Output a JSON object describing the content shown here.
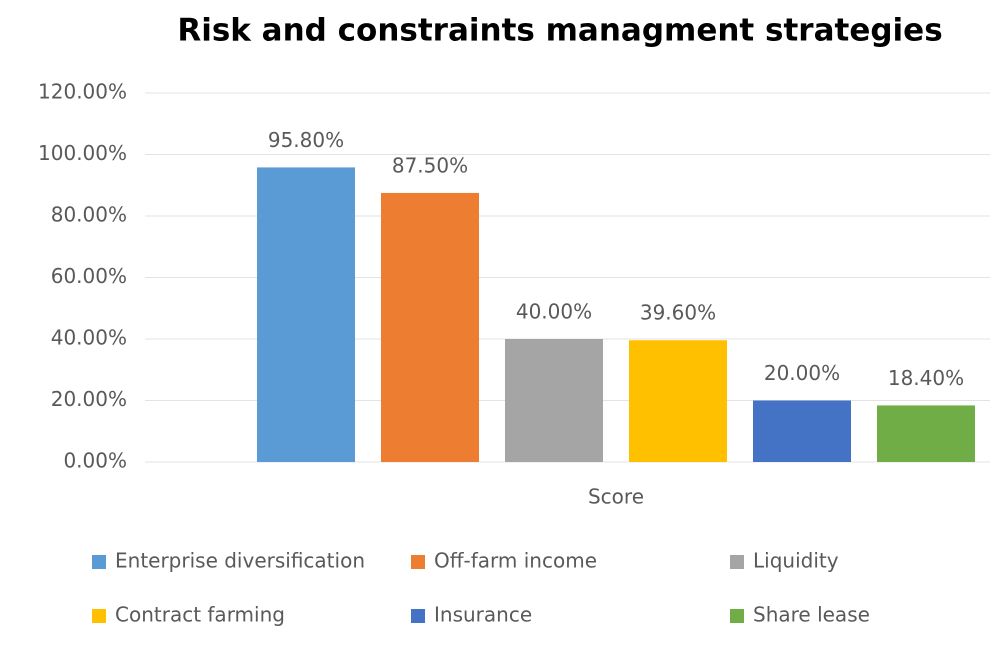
{
  "chart_data": {
    "type": "bar",
    "title": "Risk and constraints managment strategies",
    "categories": [
      "Score"
    ],
    "series": [
      {
        "name": "Enterprise diversification",
        "color": "#5b9bd5",
        "values": [
          95.8
        ],
        "value_labels": [
          "95.80%"
        ]
      },
      {
        "name": "Off-farm income",
        "color": "#ed7d31",
        "values": [
          87.5
        ],
        "value_labels": [
          "87.50%"
        ]
      },
      {
        "name": "Liquidity",
        "color": "#a5a5a5",
        "values": [
          40
        ],
        "value_labels": [
          "40.00%"
        ]
      },
      {
        "name": "Contract farming",
        "color": "#ffc000",
        "values": [
          39.6
        ],
        "value_labels": [
          "39.60%"
        ]
      },
      {
        "name": "Insurance",
        "color": "#4472c4",
        "values": [
          20
        ],
        "value_labels": [
          "20.00%"
        ]
      },
      {
        "name": "Share lease",
        "color": "#70ad47",
        "values": [
          18.4
        ],
        "value_labels": [
          "18.40%"
        ]
      }
    ],
    "ylim": [
      0,
      120
    ],
    "yticks": [
      {
        "value": 0,
        "label": "0.00%"
      },
      {
        "value": 20,
        "label": "20.00%"
      },
      {
        "value": 40,
        "label": "40.00%"
      },
      {
        "value": 60,
        "label": "60.00%"
      },
      {
        "value": 80,
        "label": "80.00%"
      },
      {
        "value": 100,
        "label": "100.00%"
      },
      {
        "value": 120,
        "label": "120.00%"
      }
    ],
    "grid": true,
    "legend": "bottom"
  }
}
